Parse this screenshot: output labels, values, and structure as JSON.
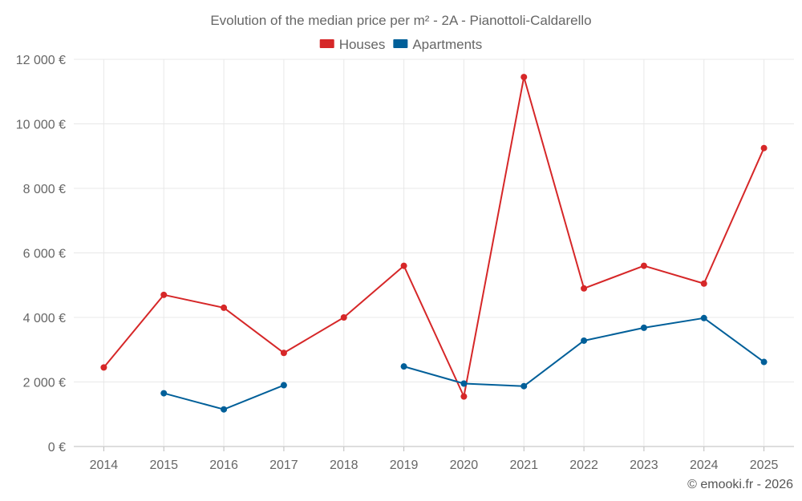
{
  "chart_data": {
    "type": "line",
    "title": "Evolution of the median price per m² - 2A - Pianottoli-Caldarello",
    "xlabel": "",
    "ylabel": "",
    "categories": [
      "2014",
      "2015",
      "2016",
      "2017",
      "2018",
      "2019",
      "2020",
      "2021",
      "2022",
      "2023",
      "2024",
      "2025"
    ],
    "y_ticks": [
      "0 €",
      "2 000 €",
      "4 000 €",
      "6 000 €",
      "8 000 €",
      "10 000 €",
      "12 000 €"
    ],
    "ylim": [
      0,
      12000
    ],
    "grid": true,
    "legend_position": "top-center",
    "series": [
      {
        "name": "Houses",
        "color": "#d62728",
        "values": [
          2450,
          4700,
          4300,
          2900,
          4000,
          5600,
          1550,
          11450,
          4900,
          5600,
          5050,
          9250
        ]
      },
      {
        "name": "Apartments",
        "color": "#005f99",
        "values": [
          null,
          1650,
          1150,
          1900,
          null,
          2480,
          1950,
          1870,
          3280,
          3680,
          3980,
          2620
        ]
      }
    ]
  },
  "credit": "© emooki.fr - 2026"
}
